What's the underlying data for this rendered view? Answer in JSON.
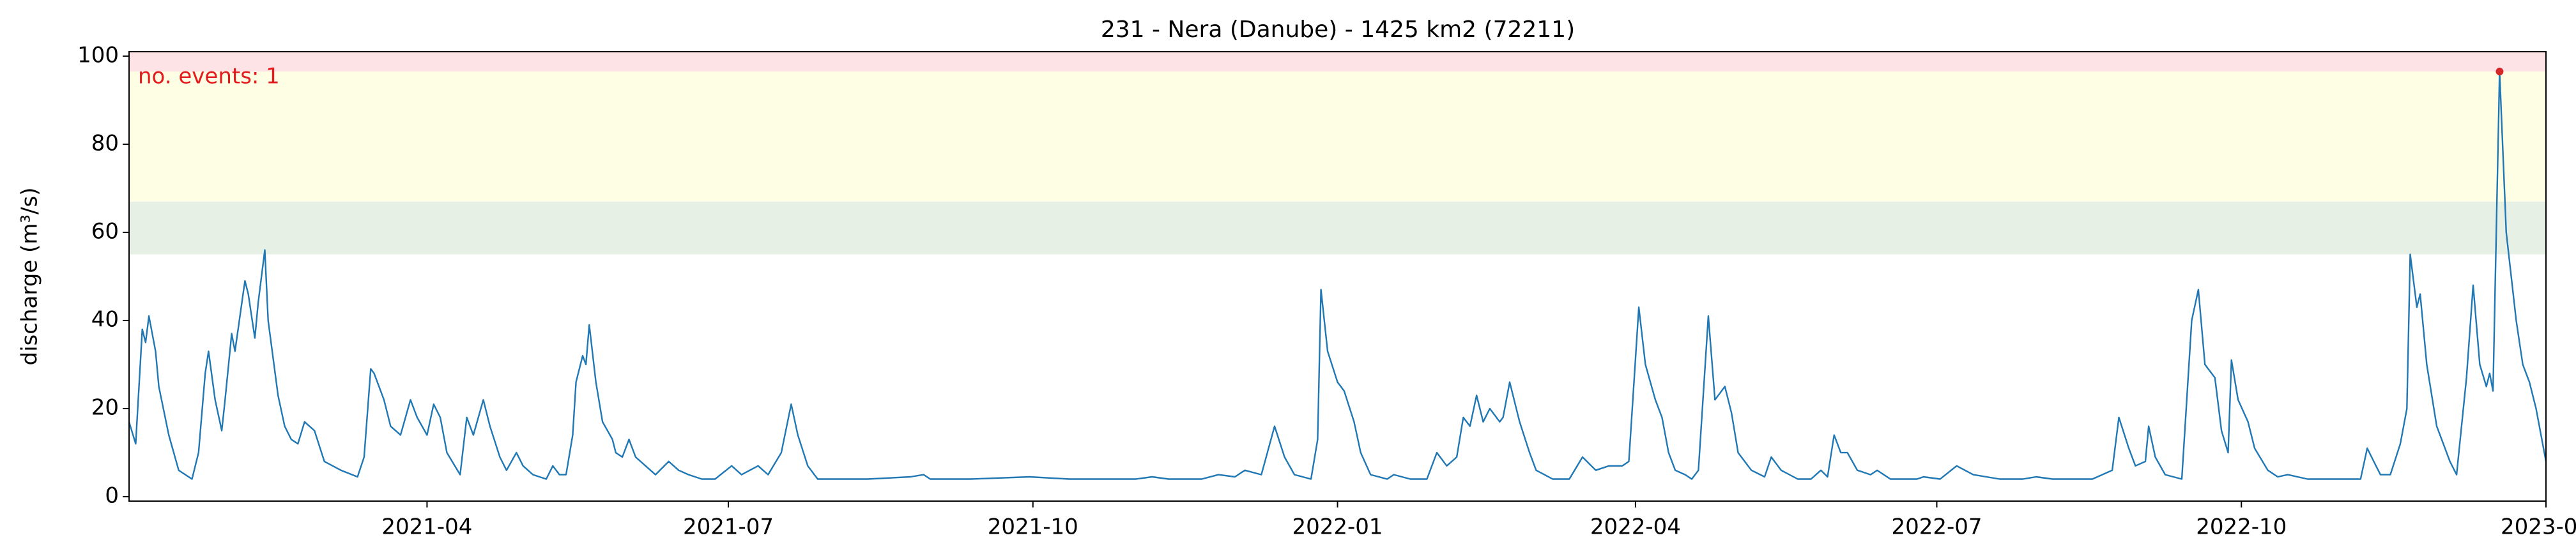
{
  "chart_data": {
    "type": "line",
    "title": "231 - Nera (Danube) - 1425 km2 (72211)",
    "y_label": "discharge (m³/s)",
    "annotation": "no. events: 1",
    "annotation_color": "#e41a1c",
    "xlim": [
      "2021-01-01",
      "2023-01-01"
    ],
    "xticks": [
      {
        "value": "2021-04-01",
        "label": "2021-04"
      },
      {
        "value": "2021-07-01",
        "label": "2021-07"
      },
      {
        "value": "2021-10-01",
        "label": "2021-10"
      },
      {
        "value": "2022-01-01",
        "label": "2022-01"
      },
      {
        "value": "2022-04-01",
        "label": "2022-04"
      },
      {
        "value": "2022-07-01",
        "label": "2022-07"
      },
      {
        "value": "2022-10-01",
        "label": "2022-10"
      },
      {
        "value": "2023-01-01",
        "label": "2023-01"
      }
    ],
    "ylim": [
      -1,
      101
    ],
    "yticks": [
      0,
      20,
      40,
      60,
      80,
      100
    ],
    "bands": [
      {
        "from": 55,
        "to": 67,
        "color": "#e6f0e4"
      },
      {
        "from": 67,
        "to": 96.5,
        "color": "#fefee4"
      },
      {
        "from": 96.5,
        "to": 101,
        "color": "#fde3e6"
      }
    ],
    "x": [
      "2021-01-01",
      "2021-01-03",
      "2021-01-05",
      "2021-01-06",
      "2021-01-07",
      "2021-01-09",
      "2021-01-10",
      "2021-01-13",
      "2021-01-16",
      "2021-01-20",
      "2021-01-22",
      "2021-01-24",
      "2021-01-25",
      "2021-01-27",
      "2021-01-29",
      "2021-01-30",
      "2021-02-01",
      "2021-02-02",
      "2021-02-05",
      "2021-02-06",
      "2021-02-08",
      "2021-02-09",
      "2021-02-11",
      "2021-02-12",
      "2021-02-15",
      "2021-02-17",
      "2021-02-19",
      "2021-02-21",
      "2021-02-23",
      "2021-02-26",
      "2021-03-01",
      "2021-03-06",
      "2021-03-11",
      "2021-03-13",
      "2021-03-15",
      "2021-03-16",
      "2021-03-19",
      "2021-03-21",
      "2021-03-24",
      "2021-03-27",
      "2021-03-29",
      "2021-04-01",
      "2021-04-03",
      "2021-04-05",
      "2021-04-07",
      "2021-04-11",
      "2021-04-13",
      "2021-04-15",
      "2021-04-18",
      "2021-04-20",
      "2021-04-23",
      "2021-04-25",
      "2021-04-28",
      "2021-04-30",
      "2021-05-03",
      "2021-05-07",
      "2021-05-09",
      "2021-05-11",
      "2021-05-13",
      "2021-05-15",
      "2021-05-16",
      "2021-05-18",
      "2021-05-19",
      "2021-05-20",
      "2021-05-22",
      "2021-05-24",
      "2021-05-27",
      "2021-05-28",
      "2021-05-30",
      "2021-06-01",
      "2021-06-03",
      "2021-06-06",
      "2021-06-09",
      "2021-06-13",
      "2021-06-16",
      "2021-06-19",
      "2021-06-23",
      "2021-06-27",
      "2021-07-02",
      "2021-07-05",
      "2021-07-10",
      "2021-07-13",
      "2021-07-17",
      "2021-07-20",
      "2021-07-22",
      "2021-07-25",
      "2021-07-28",
      "2021-08-02",
      "2021-08-12",
      "2021-08-25",
      "2021-08-29",
      "2021-08-31",
      "2021-09-12",
      "2021-09-30",
      "2021-10-12",
      "2021-11-01",
      "2021-11-06",
      "2021-11-11",
      "2021-11-21",
      "2021-11-26",
      "2021-12-01",
      "2021-12-04",
      "2021-12-09",
      "2021-12-13",
      "2021-12-16",
      "2021-12-19",
      "2021-12-24",
      "2021-12-26",
      "2021-12-27",
      "2021-12-29",
      "2022-01-01",
      "2022-01-03",
      "2022-01-06",
      "2022-01-08",
      "2022-01-11",
      "2022-01-16",
      "2022-01-18",
      "2022-01-23",
      "2022-01-28",
      "2022-01-31",
      "2022-02-03",
      "2022-02-06",
      "2022-02-08",
      "2022-02-10",
      "2022-02-12",
      "2022-02-14",
      "2022-02-16",
      "2022-02-19",
      "2022-02-20",
      "2022-02-22",
      "2022-02-25",
      "2022-02-28",
      "2022-03-02",
      "2022-03-07",
      "2022-03-12",
      "2022-03-16",
      "2022-03-20",
      "2022-03-24",
      "2022-03-28",
      "2022-03-30",
      "2022-04-02",
      "2022-04-04",
      "2022-04-07",
      "2022-04-09",
      "2022-04-11",
      "2022-04-13",
      "2022-04-16",
      "2022-04-18",
      "2022-04-20",
      "2022-04-23",
      "2022-04-25",
      "2022-04-28",
      "2022-04-30",
      "2022-05-02",
      "2022-05-06",
      "2022-05-10",
      "2022-05-12",
      "2022-05-15",
      "2022-05-20",
      "2022-05-24",
      "2022-05-27",
      "2022-05-29",
      "2022-05-31",
      "2022-06-02",
      "2022-06-04",
      "2022-06-07",
      "2022-06-11",
      "2022-06-13",
      "2022-06-17",
      "2022-06-25",
      "2022-06-27",
      "2022-07-02",
      "2022-07-07",
      "2022-07-12",
      "2022-07-20",
      "2022-07-27",
      "2022-07-31",
      "2022-08-05",
      "2022-08-11",
      "2022-08-17",
      "2022-08-23",
      "2022-08-25",
      "2022-08-28",
      "2022-08-30",
      "2022-09-02",
      "2022-09-03",
      "2022-09-05",
      "2022-09-08",
      "2022-09-13",
      "2022-09-16",
      "2022-09-18",
      "2022-09-20",
      "2022-09-23",
      "2022-09-25",
      "2022-09-27",
      "2022-09-28",
      "2022-09-30",
      "2022-10-03",
      "2022-10-05",
      "2022-10-09",
      "2022-10-12",
      "2022-10-15",
      "2022-10-21",
      "2022-10-31",
      "2022-11-06",
      "2022-11-08",
      "2022-11-10",
      "2022-11-12",
      "2022-11-15",
      "2022-11-18",
      "2022-11-20",
      "2022-11-21",
      "2022-11-23",
      "2022-11-24",
      "2022-11-26",
      "2022-11-29",
      "2022-12-03",
      "2022-12-05",
      "2022-12-08",
      "2022-12-10",
      "2022-12-12",
      "2022-12-14",
      "2022-12-15",
      "2022-12-16",
      "2022-12-18",
      "2022-12-20",
      "2022-12-23",
      "2022-12-25",
      "2022-12-27",
      "2022-12-29",
      "2023-01-01"
    ],
    "series": [
      {
        "color": "#1f77b4",
        "values": [
          17,
          12,
          38,
          35,
          41,
          33,
          25,
          14,
          6,
          4,
          10,
          28,
          33,
          22,
          15,
          22,
          37,
          33,
          49,
          46,
          36,
          44,
          56,
          40,
          23,
          16,
          13,
          12,
          17,
          15,
          8,
          6,
          4.5,
          9,
          29,
          28,
          22,
          16,
          14,
          22,
          18,
          14,
          21,
          18,
          10,
          5,
          18,
          14,
          22,
          16,
          9,
          6,
          10,
          7,
          5,
          4,
          7,
          5,
          5,
          14,
          26,
          32,
          30,
          39,
          26,
          17,
          13,
          10,
          9,
          13,
          9,
          7,
          5,
          8,
          6,
          5,
          4,
          4,
          7,
          5,
          7,
          5,
          10,
          21,
          14,
          7,
          4,
          4,
          4,
          4.5,
          5,
          4,
          4,
          4.5,
          4,
          4,
          4.5,
          4,
          4,
          5,
          4.5,
          6,
          5,
          16,
          9,
          5,
          4,
          13,
          47,
          33,
          26,
          24,
          17,
          10,
          5,
          4,
          5,
          4,
          4,
          10,
          7,
          9,
          18,
          16,
          23,
          17,
          20,
          17,
          18,
          26,
          17,
          10,
          6,
          4,
          4,
          9,
          6,
          7,
          7,
          8,
          43,
          30,
          22,
          18,
          10,
          6,
          5,
          4,
          6,
          41,
          22,
          25,
          19,
          10,
          6,
          4.5,
          9,
          6,
          4,
          4,
          6,
          4.5,
          14,
          10,
          10,
          6,
          5,
          6,
          4,
          4,
          4.5,
          4,
          7,
          5,
          4,
          4,
          4.5,
          4,
          4,
          4,
          6,
          18,
          11,
          7,
          8,
          16,
          9,
          5,
          4,
          40,
          47,
          30,
          27,
          15,
          10,
          31,
          22,
          17,
          11,
          6,
          4.5,
          5,
          4,
          4,
          4,
          11,
          8,
          5,
          5,
          12,
          20,
          55,
          43,
          46,
          30,
          16,
          8,
          5,
          27,
          48,
          30,
          25,
          28,
          24,
          96.5,
          60,
          40,
          30,
          26,
          20,
          8
        ]
      }
    ],
    "events": {
      "color": "#d62728",
      "x": [
        "2022-12-18"
      ],
      "values": [
        96.5
      ]
    }
  }
}
